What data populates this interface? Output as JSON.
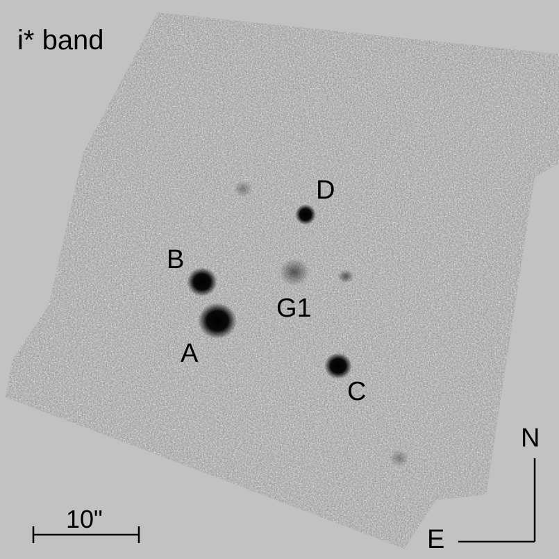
{
  "band_label": "i* band",
  "objects": {
    "a": "A",
    "b": "B",
    "c": "C",
    "d": "D",
    "g1": "G1"
  },
  "scale_bar": {
    "label": "10\""
  },
  "compass": {
    "north": "N",
    "east": "E"
  },
  "colors": {
    "background": "#c2c2c2",
    "ink": "#000000"
  }
}
